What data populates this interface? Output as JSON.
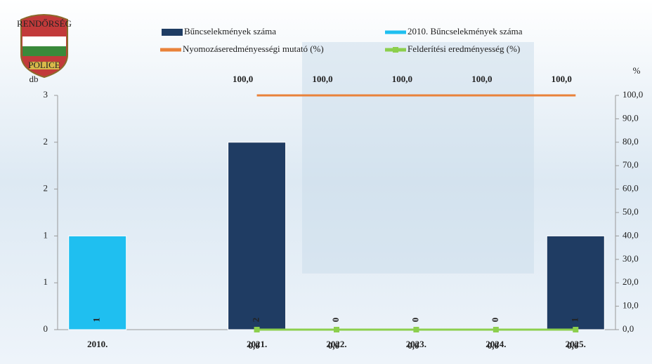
{
  "logo": {
    "top": "RENDŐRSÉG",
    "bottom": "POLICE"
  },
  "chart_data": {
    "type": "bar",
    "y_label": "db",
    "y2_label": "%",
    "categories": [
      "2010.",
      null,
      "2021.",
      "2022.",
      "2023.",
      "2024.",
      "2025."
    ],
    "ylim": [
      0,
      2.5
    ],
    "yticks": [
      {
        "value": 0,
        "label": "0"
      },
      {
        "value": 0.5,
        "label": "1"
      },
      {
        "value": 1,
        "label": "1"
      },
      {
        "value": 1.5,
        "label": "2"
      },
      {
        "value": 2,
        "label": "2"
      },
      {
        "value": 2.5,
        "label": "3"
      }
    ],
    "y2lim": [
      0,
      100
    ],
    "y2ticks": [
      {
        "value": 0,
        "label": "0,0"
      },
      {
        "value": 10,
        "label": "10,0"
      },
      {
        "value": 20,
        "label": "20,0"
      },
      {
        "value": 30,
        "label": "30,0"
      },
      {
        "value": 40,
        "label": "40,0"
      },
      {
        "value": 50,
        "label": "50,0"
      },
      {
        "value": 60,
        "label": "60,0"
      },
      {
        "value": 70,
        "label": "70,0"
      },
      {
        "value": 80,
        "label": "80,0"
      },
      {
        "value": 90,
        "label": "90,0"
      },
      {
        "value": 100,
        "label": "100,0"
      }
    ],
    "series": [
      {
        "name": "Bűncselekmények száma",
        "type": "bar",
        "color": "#1f3c63",
        "values": [
          null,
          null,
          2,
          0,
          0,
          0,
          1
        ]
      },
      {
        "name": "2010. Bűncselekmények száma",
        "type": "bar",
        "color": "#1fbff0",
        "values": [
          1,
          null,
          null,
          null,
          null,
          null,
          null
        ]
      },
      {
        "name": "Nyomozáseredményességi mutató (%)",
        "type": "line",
        "axis": "y2",
        "color": "#e9823a",
        "values": [
          null,
          null,
          100,
          100,
          100,
          100,
          100
        ],
        "value_labels": [
          null,
          null,
          "100,0",
          "100,0",
          "100,0",
          "100,0",
          "100,0"
        ]
      },
      {
        "name": "Felderítési eredményesség (%)",
        "type": "line",
        "axis": "y2",
        "color": "#8ccf4d",
        "values": [
          null,
          null,
          0,
          0,
          0,
          0,
          0
        ],
        "value_labels": [
          null,
          null,
          "0,0",
          "0,0",
          "0,0",
          "0,0",
          "0,0"
        ]
      }
    ]
  }
}
